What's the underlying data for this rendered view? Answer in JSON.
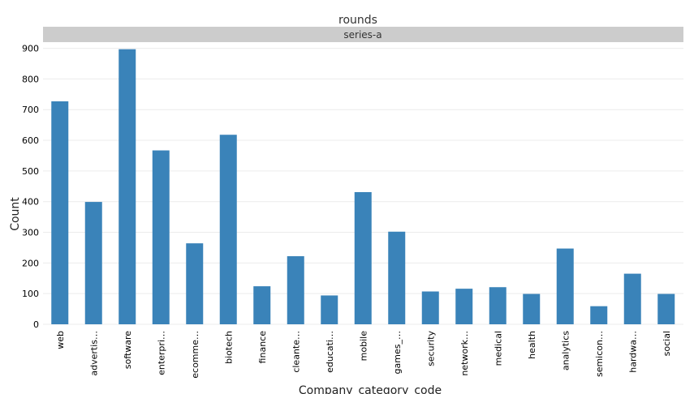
{
  "chart_data": {
    "type": "bar",
    "title": "rounds",
    "facet_label": "series-a",
    "xlabel": "Company_category_code",
    "ylabel": "Count",
    "categories": [
      "web",
      "advertis…",
      "software",
      "enterpri…",
      "ecomme…",
      "biotech",
      "finance",
      "cleante…",
      "educati…",
      "mobile",
      "games_…",
      "security",
      "network…",
      "medical",
      "health",
      "analytics",
      "semicon…",
      "hardwa…",
      "social"
    ],
    "values": [
      727,
      399,
      897,
      567,
      264,
      618,
      124,
      222,
      94,
      431,
      302,
      107,
      116,
      121,
      99,
      247,
      59,
      165,
      99
    ],
    "ylim": [
      0,
      920
    ],
    "yticks": [
      "0",
      "100",
      "200",
      "300",
      "400",
      "500",
      "600",
      "700",
      "800",
      "900"
    ],
    "grid": true,
    "bar_color": "#3a83b9",
    "strip_color": "#cccccc"
  }
}
